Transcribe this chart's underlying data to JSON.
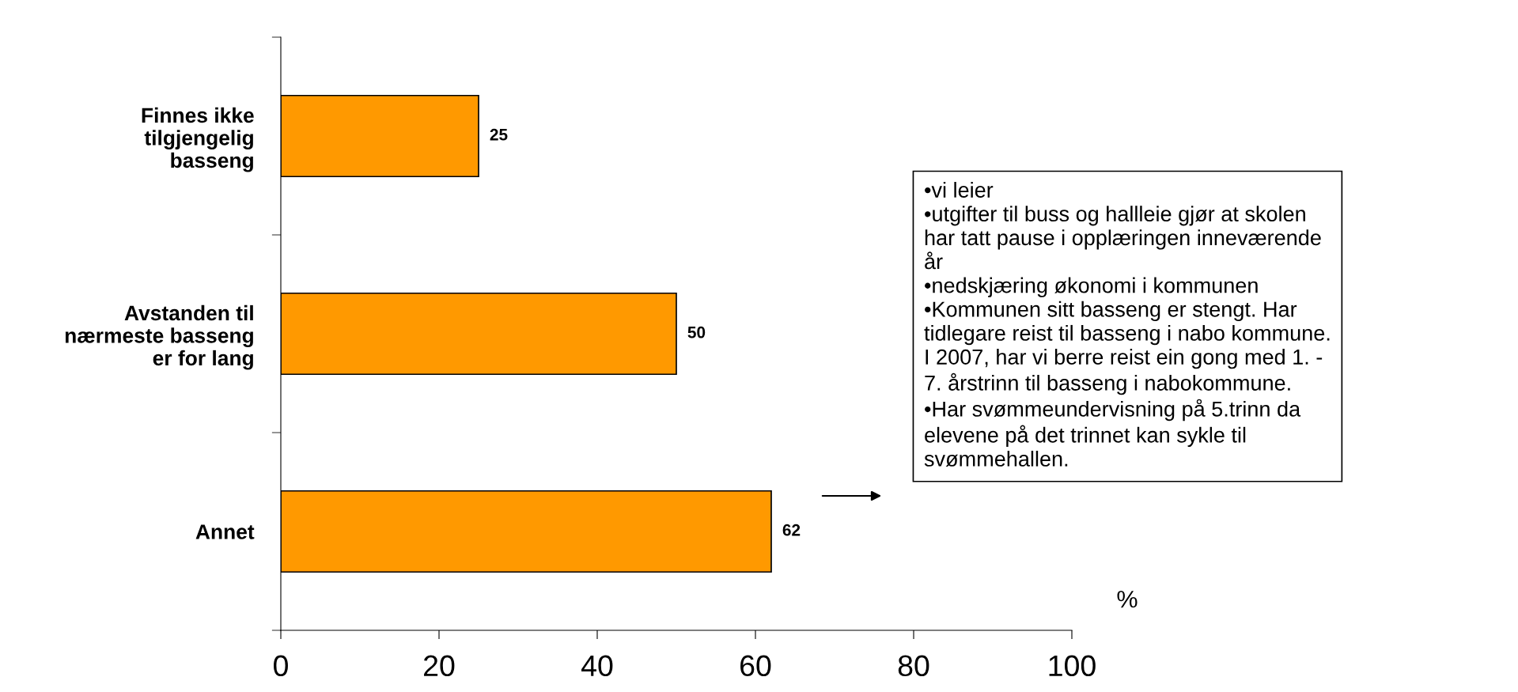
{
  "chart_data": {
    "type": "bar",
    "orientation": "horizontal",
    "categories": [
      "Finnes ikke\ntilgjengelig\nbasseng",
      "Avstanden til\nnærmeste basseng\ner for lang",
      "Annet"
    ],
    "values": [
      25,
      50,
      62
    ],
    "color": "#ff9900",
    "data_labels": true,
    "xlim": [
      0,
      100
    ],
    "xticks": [
      0,
      20,
      40,
      60,
      80,
      100
    ],
    "xlabel": "%",
    "grid": false,
    "annotations": [
      "•vi leier\n•utgifter til buss og hallleie gjør at skolen\nhar tatt pause i opplæringen inneværende\når\n•nedskjæring økonomi i kommunen\n•Kommunen sitt basseng er stengt. Har\ntidlegare reist til basseng i nabo kommune.\nI 2007, har vi berre reist ein gong med 1. -\n7. årstrinn til basseng i nabokommune.\n•Har svømmeundervisning på 5.trinn da\nelevene på det trinnet kan sykle til\nsvømmehallen."
    ]
  }
}
